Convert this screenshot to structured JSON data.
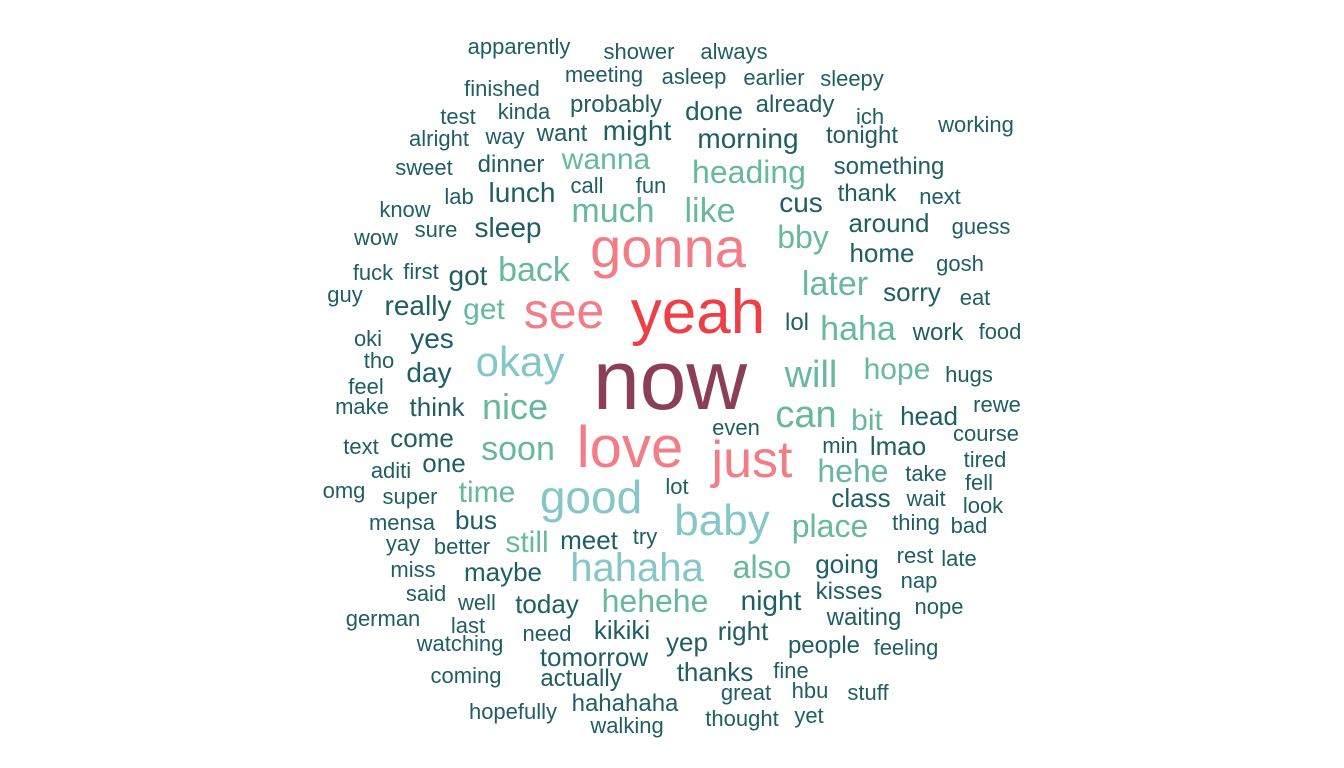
{
  "word_cloud": {
    "palette": {
      "dark_teal": "#1f5e63",
      "mid_teal": "#67b89f",
      "light_teal": "#85c6c6",
      "pink": "#f37d86",
      "red": "#ef3f46",
      "maroon": "#8b3f57"
    },
    "words": [
      {
        "text": "now",
        "color": "maroon"
      },
      {
        "text": "yeah",
        "color": "red"
      },
      {
        "text": "gonna",
        "color": "pink"
      },
      {
        "text": "love",
        "color": "pink"
      },
      {
        "text": "see",
        "color": "pink"
      },
      {
        "text": "just",
        "color": "pink"
      },
      {
        "text": "good",
        "color": "light_teal"
      },
      {
        "text": "baby",
        "color": "light_teal"
      },
      {
        "text": "okay",
        "color": "light_teal"
      },
      {
        "text": "hahaha",
        "color": "light_teal"
      },
      {
        "text": "nice",
        "color": "mid_teal"
      },
      {
        "text": "will",
        "color": "mid_teal"
      },
      {
        "text": "can",
        "color": "mid_teal"
      },
      {
        "text": "much",
        "color": "mid_teal"
      },
      {
        "text": "soon",
        "color": "mid_teal"
      },
      {
        "text": "haha",
        "color": "mid_teal"
      },
      {
        "text": "later",
        "color": "mid_teal"
      },
      {
        "text": "back",
        "color": "mid_teal"
      },
      {
        "text": "like",
        "color": "mid_teal"
      },
      {
        "text": "heading",
        "color": "mid_teal"
      },
      {
        "text": "hehe",
        "color": "mid_teal"
      },
      {
        "text": "also",
        "color": "mid_teal"
      },
      {
        "text": "place",
        "color": "mid_teal"
      },
      {
        "text": "hehehe",
        "color": "mid_teal"
      },
      {
        "text": "bby",
        "color": "mid_teal"
      },
      {
        "text": "wanna",
        "color": "mid_teal"
      },
      {
        "text": "time",
        "color": "mid_teal"
      },
      {
        "text": "get",
        "color": "mid_teal"
      },
      {
        "text": "bit",
        "color": "mid_teal"
      },
      {
        "text": "hope",
        "color": "mid_teal"
      },
      {
        "text": "still",
        "color": "mid_teal"
      },
      {
        "text": "morning",
        "color": "dark_teal"
      },
      {
        "text": "might",
        "color": "dark_teal"
      },
      {
        "text": "something",
        "color": "dark_teal"
      },
      {
        "text": "cus",
        "color": "dark_teal"
      },
      {
        "text": "around",
        "color": "dark_teal"
      },
      {
        "text": "home",
        "color": "dark_teal"
      },
      {
        "text": "sleep",
        "color": "dark_teal"
      },
      {
        "text": "lunch",
        "color": "dark_teal"
      },
      {
        "text": "got",
        "color": "dark_teal"
      },
      {
        "text": "really",
        "color": "dark_teal"
      },
      {
        "text": "yes",
        "color": "dark_teal"
      },
      {
        "text": "day",
        "color": "dark_teal"
      },
      {
        "text": "think",
        "color": "dark_teal"
      },
      {
        "text": "come",
        "color": "dark_teal"
      },
      {
        "text": "one",
        "color": "dark_teal"
      },
      {
        "text": "class",
        "color": "dark_teal"
      },
      {
        "text": "head",
        "color": "dark_teal"
      },
      {
        "text": "lmao",
        "color": "dark_teal"
      },
      {
        "text": "night",
        "color": "dark_teal"
      },
      {
        "text": "going",
        "color": "dark_teal"
      },
      {
        "text": "maybe",
        "color": "dark_teal"
      },
      {
        "text": "meet",
        "color": "dark_teal"
      },
      {
        "text": "today",
        "color": "dark_teal"
      },
      {
        "text": "tomorrow",
        "color": "dark_teal"
      },
      {
        "text": "right",
        "color": "dark_teal"
      },
      {
        "text": "kikiki",
        "color": "dark_teal"
      },
      {
        "text": "yep",
        "color": "dark_teal"
      },
      {
        "text": "bus",
        "color": "dark_teal"
      },
      {
        "text": "sorry",
        "color": "dark_teal"
      },
      {
        "text": "work",
        "color": "dark_teal"
      },
      {
        "text": "lol",
        "color": "dark_teal"
      },
      {
        "text": "kisses",
        "color": "dark_teal"
      },
      {
        "text": "waiting",
        "color": "dark_teal"
      },
      {
        "text": "thanks",
        "color": "dark_teal"
      },
      {
        "text": "actually",
        "color": "dark_teal"
      },
      {
        "text": "hahahaha",
        "color": "dark_teal"
      },
      {
        "text": "dinner",
        "color": "dark_teal"
      },
      {
        "text": "probably",
        "color": "dark_teal"
      },
      {
        "text": "done",
        "color": "dark_teal"
      },
      {
        "text": "already",
        "color": "dark_teal"
      },
      {
        "text": "want",
        "color": "dark_teal"
      },
      {
        "text": "thank",
        "color": "dark_teal"
      },
      {
        "text": "tonight",
        "color": "dark_teal"
      },
      {
        "text": "people",
        "color": "dark_teal"
      },
      {
        "text": "feeling",
        "color": "dark_teal"
      },
      {
        "text": "apparently",
        "color": "dark_teal"
      },
      {
        "text": "shower",
        "color": "dark_teal"
      },
      {
        "text": "always",
        "color": "dark_teal"
      },
      {
        "text": "finished",
        "color": "dark_teal"
      },
      {
        "text": "meeting",
        "color": "dark_teal"
      },
      {
        "text": "asleep",
        "color": "dark_teal"
      },
      {
        "text": "earlier",
        "color": "dark_teal"
      },
      {
        "text": "sleepy",
        "color": "dark_teal"
      },
      {
        "text": "test",
        "color": "dark_teal"
      },
      {
        "text": "kinda",
        "color": "dark_teal"
      },
      {
        "text": "ich",
        "color": "dark_teal"
      },
      {
        "text": "working",
        "color": "dark_teal"
      },
      {
        "text": "alright",
        "color": "dark_teal"
      },
      {
        "text": "way",
        "color": "dark_teal"
      },
      {
        "text": "sweet",
        "color": "dark_teal"
      },
      {
        "text": "call",
        "color": "dark_teal"
      },
      {
        "text": "fun",
        "color": "dark_teal"
      },
      {
        "text": "lab",
        "color": "dark_teal"
      },
      {
        "text": "next",
        "color": "dark_teal"
      },
      {
        "text": "know",
        "color": "dark_teal"
      },
      {
        "text": "sure",
        "color": "dark_teal"
      },
      {
        "text": "wow",
        "color": "dark_teal"
      },
      {
        "text": "guess",
        "color": "dark_teal"
      },
      {
        "text": "fuck",
        "color": "dark_teal"
      },
      {
        "text": "first",
        "color": "dark_teal"
      },
      {
        "text": "gosh",
        "color": "dark_teal"
      },
      {
        "text": "guy",
        "color": "dark_teal"
      },
      {
        "text": "eat",
        "color": "dark_teal"
      },
      {
        "text": "oki",
        "color": "dark_teal"
      },
      {
        "text": "food",
        "color": "dark_teal"
      },
      {
        "text": "tho",
        "color": "dark_teal"
      },
      {
        "text": "feel",
        "color": "dark_teal"
      },
      {
        "text": "hugs",
        "color": "dark_teal"
      },
      {
        "text": "make",
        "color": "dark_teal"
      },
      {
        "text": "rewe",
        "color": "dark_teal"
      },
      {
        "text": "even",
        "color": "dark_teal"
      },
      {
        "text": "text",
        "color": "dark_teal"
      },
      {
        "text": "min",
        "color": "dark_teal"
      },
      {
        "text": "course",
        "color": "dark_teal"
      },
      {
        "text": "aditi",
        "color": "dark_teal"
      },
      {
        "text": "tired",
        "color": "dark_teal"
      },
      {
        "text": "take",
        "color": "dark_teal"
      },
      {
        "text": "omg",
        "color": "dark_teal"
      },
      {
        "text": "super",
        "color": "dark_teal"
      },
      {
        "text": "lot",
        "color": "dark_teal"
      },
      {
        "text": "fell",
        "color": "dark_teal"
      },
      {
        "text": "wait",
        "color": "dark_teal"
      },
      {
        "text": "look",
        "color": "dark_teal"
      },
      {
        "text": "mensa",
        "color": "dark_teal"
      },
      {
        "text": "thing",
        "color": "dark_teal"
      },
      {
        "text": "bad",
        "color": "dark_teal"
      },
      {
        "text": "yay",
        "color": "dark_teal"
      },
      {
        "text": "better",
        "color": "dark_teal"
      },
      {
        "text": "try",
        "color": "dark_teal"
      },
      {
        "text": "rest",
        "color": "dark_teal"
      },
      {
        "text": "late",
        "color": "dark_teal"
      },
      {
        "text": "miss",
        "color": "dark_teal"
      },
      {
        "text": "nap",
        "color": "dark_teal"
      },
      {
        "text": "said",
        "color": "dark_teal"
      },
      {
        "text": "well",
        "color": "dark_teal"
      },
      {
        "text": "nope",
        "color": "dark_teal"
      },
      {
        "text": "german",
        "color": "dark_teal"
      },
      {
        "text": "last",
        "color": "dark_teal"
      },
      {
        "text": "need",
        "color": "dark_teal"
      },
      {
        "text": "watching",
        "color": "dark_teal"
      },
      {
        "text": "coming",
        "color": "dark_teal"
      },
      {
        "text": "fine",
        "color": "dark_teal"
      },
      {
        "text": "great",
        "color": "dark_teal"
      },
      {
        "text": "hbu",
        "color": "dark_teal"
      },
      {
        "text": "stuff",
        "color": "dark_teal"
      },
      {
        "text": "hopefully",
        "color": "dark_teal"
      },
      {
        "text": "walking",
        "color": "dark_teal"
      },
      {
        "text": "thought",
        "color": "dark_teal"
      },
      {
        "text": "yet",
        "color": "dark_teal"
      }
    ]
  }
}
